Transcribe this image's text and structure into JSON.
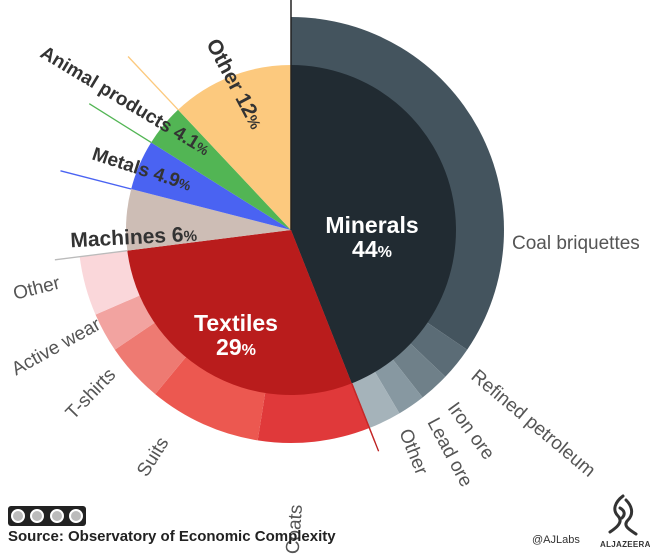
{
  "chart_data": {
    "type": "pie",
    "title": "",
    "categories": [
      {
        "name": "Minerals",
        "value": 44,
        "label_value": "44",
        "unit": "%",
        "color": "#212b32"
      },
      {
        "name": "Textiles",
        "value": 29,
        "label_value": "29",
        "unit": "%",
        "color": "#b91c1c"
      },
      {
        "name": "Machines",
        "value": 6,
        "label_value": "6",
        "unit": "%",
        "color": "#cdbdb5"
      },
      {
        "name": "Metals",
        "value": 4.9,
        "label_value": "4.9",
        "unit": "%",
        "color": "#4a63f2"
      },
      {
        "name": "Animal products",
        "value": 4.1,
        "label_value": "4.1",
        "unit": "%",
        "color": "#52b554"
      },
      {
        "name": "Other",
        "value": 12,
        "label_value": "12",
        "unit": "%",
        "color": "#fcc97e"
      }
    ],
    "subcategories": {
      "Minerals": [
        {
          "name": "Coal briquettes",
          "value": 34.5,
          "color": "#44545e"
        },
        {
          "name": "Refined petroleum",
          "value": 2.6,
          "color": "#5b6c76"
        },
        {
          "name": "Iron ore",
          "value": 2.3,
          "color": "#6f8089"
        },
        {
          "name": "Lead ore",
          "value": 2.1,
          "color": "#8798a1"
        },
        {
          "name": "Other",
          "value": 2.5,
          "color": "#a5b3ba"
        }
      ],
      "Textiles": [
        {
          "name": "Coats",
          "value": 8.5,
          "color": "#e0393a"
        },
        {
          "name": "Suits",
          "value": 8.5,
          "color": "#ec5850"
        },
        {
          "name": "T-shirts",
          "value": 4.5,
          "color": "#ee7a72"
        },
        {
          "name": "Active wear",
          "value": 3,
          "color": "#f2a3a0"
        },
        {
          "name": "Other",
          "value": 4.5,
          "color": "#fad7da"
        }
      ]
    },
    "source": "Source: Observatory of Economic Complexity",
    "credit": "@AJLabs",
    "brand": "ALJAZEERA"
  }
}
